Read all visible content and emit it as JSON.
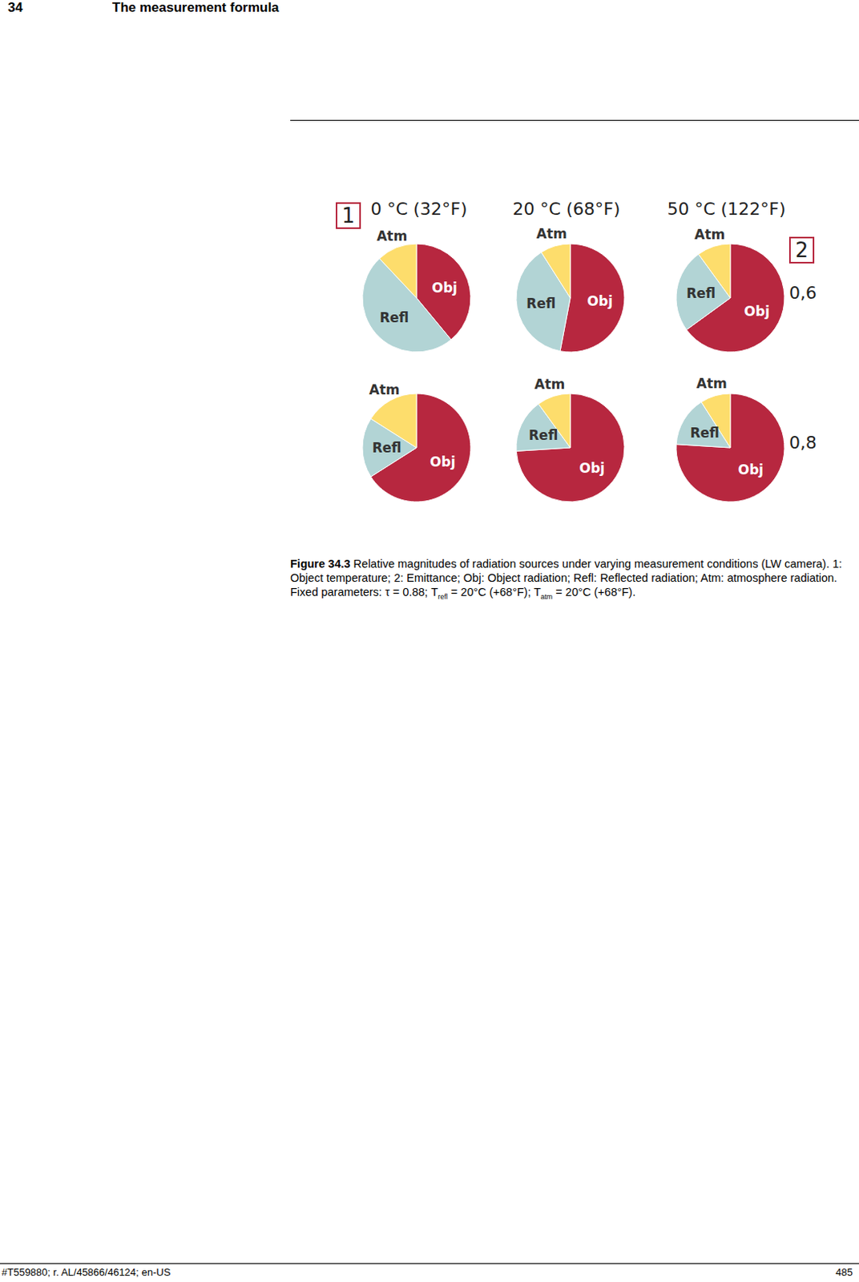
{
  "header": {
    "page": "34",
    "title": "The measurement formula"
  },
  "markers": {
    "object_temperature": "1",
    "emittance": "2"
  },
  "columns": [
    "0 °C (32°F)",
    "20 °C (68°F)",
    "50 °C (122°F)"
  ],
  "rows": [
    "0,6",
    "0,8"
  ],
  "chart_data": [
    {
      "type": "pie",
      "categories": [
        "Obj",
        "Refl",
        "Atm"
      ],
      "values": [
        39,
        49,
        12
      ],
      "colors": [
        "#b7273f",
        "#b2d4d5",
        "#fddd6c"
      ]
    },
    {
      "type": "pie",
      "categories": [
        "Obj",
        "Refl",
        "Atm"
      ],
      "values": [
        53,
        38,
        9
      ],
      "colors": [
        "#b7273f",
        "#b2d4d5",
        "#fddd6c"
      ]
    },
    {
      "type": "pie",
      "categories": [
        "Obj",
        "Refl",
        "Atm"
      ],
      "values": [
        65,
        25,
        10
      ],
      "colors": [
        "#b7273f",
        "#b2d4d5",
        "#fddd6c"
      ]
    },
    {
      "type": "pie",
      "categories": [
        "Obj",
        "Refl",
        "Atm"
      ],
      "values": [
        66,
        18,
        16
      ],
      "colors": [
        "#b7273f",
        "#b2d4d5",
        "#fddd6c"
      ]
    },
    {
      "type": "pie",
      "categories": [
        "Obj",
        "Refl",
        "Atm"
      ],
      "values": [
        74,
        16,
        10
      ],
      "colors": [
        "#b7273f",
        "#b2d4d5",
        "#fddd6c"
      ]
    },
    {
      "type": "pie",
      "categories": [
        "Obj",
        "Refl",
        "Atm"
      ],
      "values": [
        76,
        15,
        9
      ],
      "colors": [
        "#b7273f",
        "#b2d4d5",
        "#fddd6c"
      ]
    }
  ],
  "caption": {
    "label": "Figure 34.3",
    "text": "Relative magnitudes of radiation sources under varying measurement conditions (LW camera). 1: Object temperature; 2: Emittance; Obj: Object radiation; Refl: Reflected radiation; Atm: atmosphere radiation. Fixed parameters: τ = 0.88; T",
    "sub1": "refl",
    "mid": " = 20°C (+68°F); T",
    "sub2": "atm",
    "end": " = 20°C (+68°F)."
  },
  "footer": {
    "left": "#T559880; r. AL/45866/46124; en-US",
    "right": "485"
  }
}
